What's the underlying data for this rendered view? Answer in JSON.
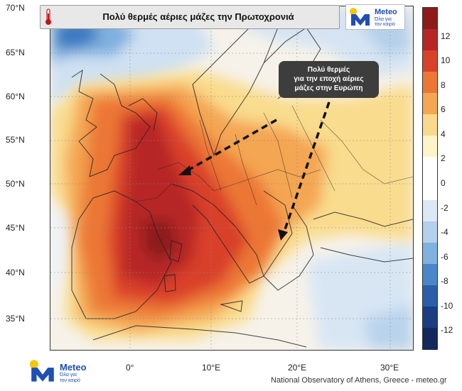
{
  "title": "Πολύ θερμές αέριες μάζες την Πρωτοχρονιά",
  "annotation": {
    "lines": [
      "Πολύ θερμές",
      "για την εποχή αέριες",
      "μάζες στην Ευρώπη"
    ]
  },
  "brand": {
    "name": "Meteo",
    "tagline_line1": "Όλα για",
    "tagline_line2": "τον καιρό",
    "color": "#1f4fb2",
    "accent": "#f6c700"
  },
  "credit": "National Observatory of Athens, Greece - meteo.gr",
  "lat_labels": [
    "70°N",
    "65°N",
    "60°N",
    "55°N",
    "50°N",
    "45°N",
    "40°N",
    "35°N"
  ],
  "lon_labels": [
    "0°",
    "10°E",
    "20°E",
    "30°E"
  ],
  "colorbar": {
    "tick_labels": [
      "12",
      "10",
      "8",
      "6",
      "4",
      "2",
      "0",
      "-2",
      "-4",
      "-6",
      "-8",
      "-10",
      "-12"
    ],
    "colors": [
      "#8e1a1a",
      "#b72525",
      "#d9412b",
      "#ec7735",
      "#f4a652",
      "#f9d98b",
      "#fdf4c8",
      "#ffffff",
      "#ffffff",
      "#dbe8f5",
      "#b3d0ec",
      "#80b1df",
      "#4a87c8",
      "#2a5ea8",
      "#1b3d82",
      "#15285b"
    ]
  },
  "icons": {
    "thermometer": "thermometer-icon",
    "logo": "meteo-logo-icon"
  }
}
